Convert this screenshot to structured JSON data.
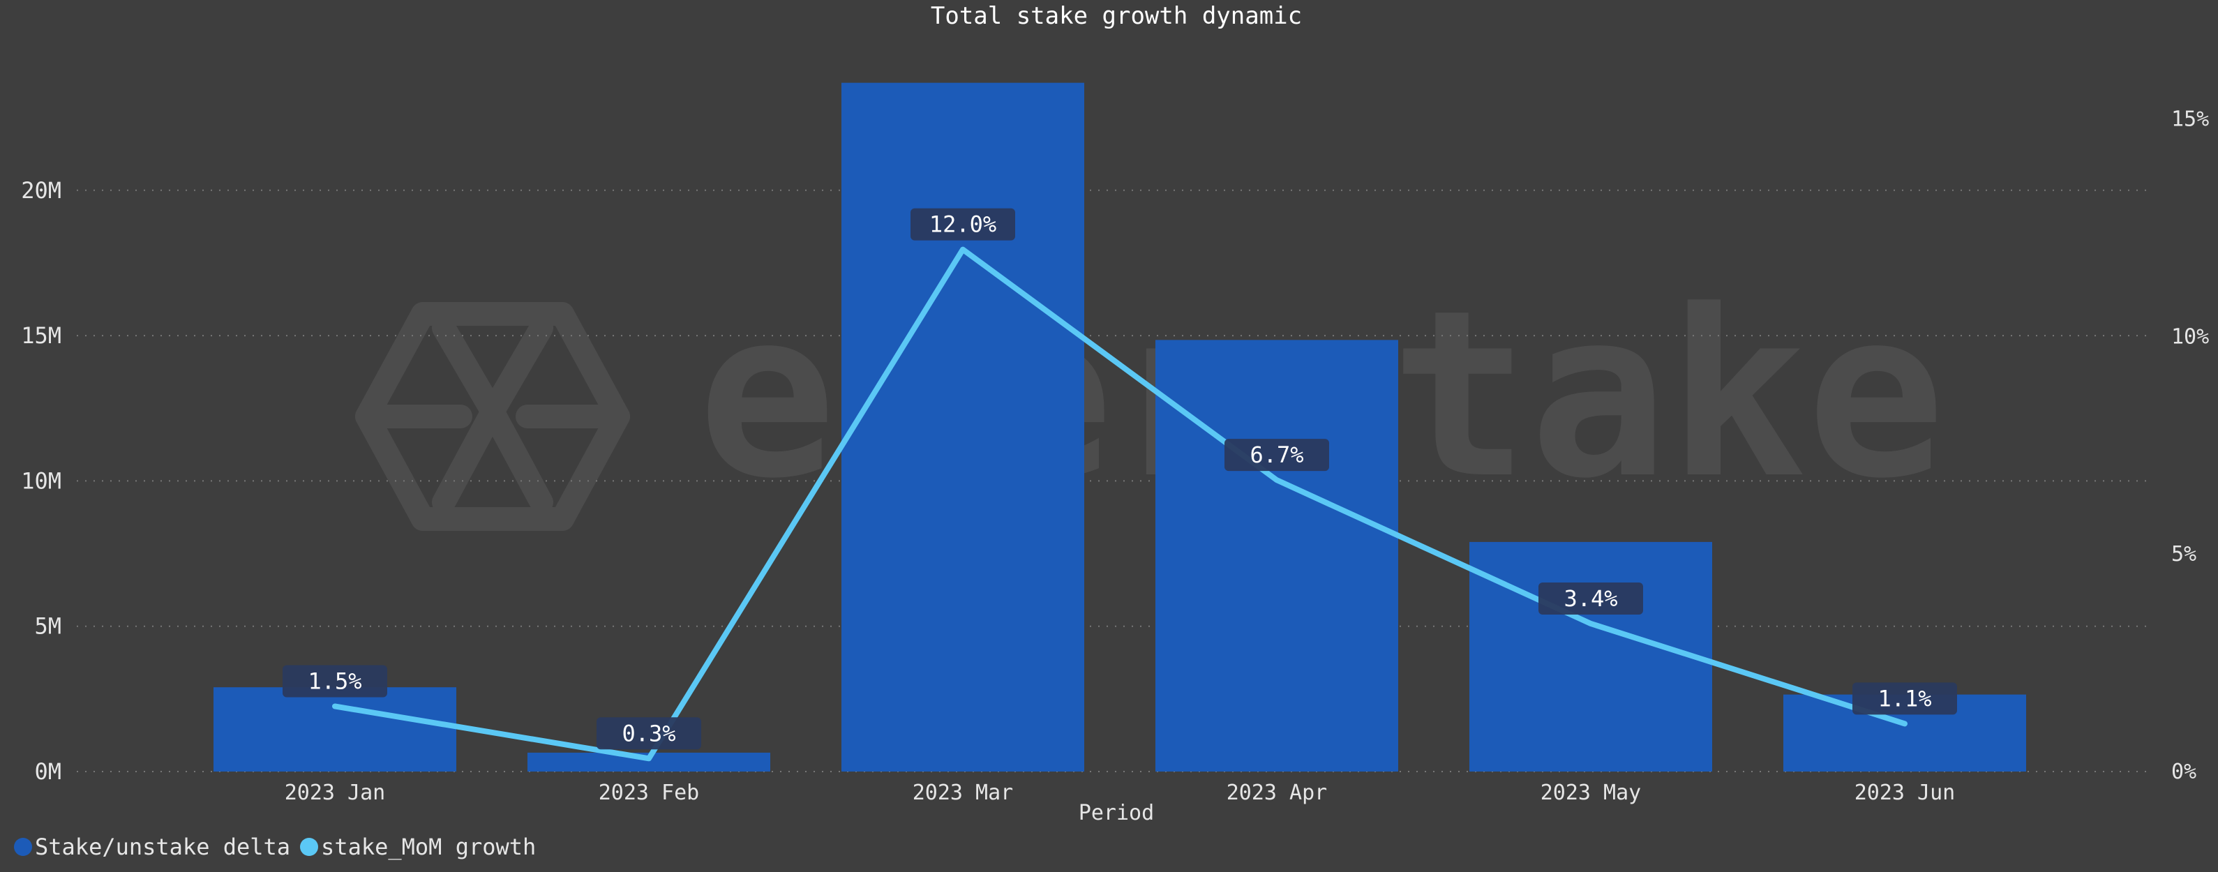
{
  "chart_data": {
    "type": "bar",
    "title": "Total stake growth dynamic",
    "xlabel": "Period",
    "ylabel": "",
    "y2label": "",
    "categories": [
      "2023 Jan",
      "2023 Feb",
      "2023 Mar",
      "2023 Apr",
      "2023 May",
      "2023 Jun"
    ],
    "series": [
      {
        "name": "Stake/unstake delta",
        "type": "bar",
        "axis": "left",
        "color": "#1c5bb8",
        "values": [
          2900000,
          650000,
          23700000,
          14850000,
          7900000,
          2650000
        ]
      },
      {
        "name": "stake_MoM growth",
        "type": "line",
        "axis": "right",
        "color": "#5bc8f5",
        "values": [
          1.5,
          0.3,
          12.0,
          6.7,
          3.4,
          1.1
        ],
        "labels": [
          "1.5%",
          "0.3%",
          "12.0%",
          "6.7%",
          "3.4%",
          "1.1%"
        ]
      }
    ],
    "ylim": [
      0,
      24700000
    ],
    "yticks": [
      0,
      5000000,
      10000000,
      15000000,
      20000000
    ],
    "ytick_labels": [
      "0M",
      "5M",
      "10M",
      "15M",
      "20M"
    ],
    "y2lim": [
      0,
      16.5
    ],
    "y2ticks": [
      0,
      5,
      10,
      15
    ],
    "y2tick_labels": [
      "0%",
      "5%",
      "10%",
      "15%"
    ],
    "grid": true,
    "legend_position": "bottom-left",
    "watermark": "everstake",
    "colors": {
      "background": "#3e3e3e",
      "text": "#e6e6e6",
      "grid": "#777777",
      "label_box": "#2a3a5e"
    }
  }
}
